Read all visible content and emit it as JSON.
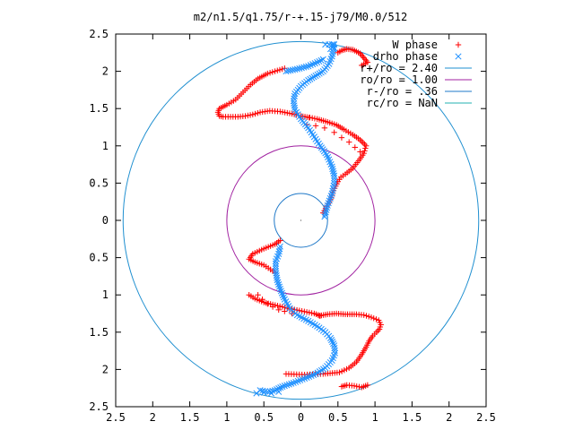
{
  "chart_data": {
    "type": "scatter",
    "title": "m2/n1.5/q1.75/r-+.15-j79/M0.0/512",
    "xlim": [
      -2.5,
      2.5
    ],
    "ylim": [
      -2.5,
      2.5
    ],
    "x_ticks": [
      -2.5,
      -2,
      -1.5,
      -1,
      -0.5,
      0,
      0.5,
      1,
      1.5,
      2,
      2.5
    ],
    "y_ticks": [
      -2.5,
      -2,
      -1.5,
      -1,
      -0.5,
      0,
      0.5,
      1,
      1.5,
      2,
      2.5
    ],
    "x_tick_labels": [
      "2.5",
      "2",
      "1.5",
      "1",
      "0.5",
      "0",
      "0.5",
      "1",
      "1.5",
      "2",
      "2.5"
    ],
    "y_tick_labels": [
      "2.5",
      "2",
      "1.5",
      "1",
      "0.5",
      "0",
      "0.5",
      "1",
      "1.5",
      "2",
      "2.5"
    ],
    "grid": false,
    "legend_position": "top-right",
    "legend": [
      {
        "label": "W phase",
        "kind": "series",
        "marker": "+",
        "color": "#ff0000"
      },
      {
        "label": "drho phase",
        "kind": "series",
        "marker": "x",
        "color": "#1e90ff"
      },
      {
        "label": "r+/ro = 2.40",
        "kind": "circle",
        "color": "#1f8fd0"
      },
      {
        "label": "ro/ro = 1.00",
        "kind": "circle",
        "color": "#a020a0"
      },
      {
        "label": "r-/ro = .36",
        "kind": "circle",
        "color": "#1e78c8"
      },
      {
        "label": "rc/ro = NaN",
        "kind": "circle",
        "color": "#20b0b0"
      }
    ],
    "circles": [
      {
        "r": 2.4,
        "color": "#1f8fd0"
      },
      {
        "r": 1.0,
        "color": "#a020a0"
      },
      {
        "r": 0.36,
        "color": "#1e78c8"
      }
    ],
    "series": [
      {
        "name": "W phase",
        "marker": "+",
        "color": "#ff0000",
        "polylines": [
          [
            [
              0.55,
              -2.23
            ],
            [
              0.62,
              -2.21
            ],
            [
              0.72,
              -2.22
            ],
            [
              0.82,
              -2.24
            ],
            [
              0.9,
              -2.21
            ]
          ],
          [
            [
              -0.2,
              -2.06
            ],
            [
              0.05,
              -2.07
            ],
            [
              0.3,
              -2.06
            ],
            [
              0.52,
              -2.04
            ],
            [
              0.65,
              -1.98
            ],
            [
              0.75,
              -1.9
            ],
            [
              0.82,
              -1.8
            ],
            [
              0.88,
              -1.7
            ],
            [
              0.92,
              -1.62
            ],
            [
              0.97,
              -1.55
            ],
            [
              1.02,
              -1.5
            ],
            [
              1.06,
              -1.46
            ],
            [
              1.08,
              -1.4
            ],
            [
              1.05,
              -1.34
            ],
            [
              0.95,
              -1.3
            ],
            [
              0.85,
              -1.27
            ],
            [
              0.75,
              -1.26
            ],
            [
              0.6,
              -1.26
            ],
            [
              0.48,
              -1.25
            ],
            [
              0.36,
              -1.26
            ],
            [
              0.25,
              -1.28
            ]
          ],
          [
            [
              0.26,
              -1.28
            ],
            [
              0.18,
              -1.25
            ],
            [
              0.08,
              -1.23
            ],
            [
              -0.02,
              -1.21
            ],
            [
              -0.12,
              -1.19
            ],
            [
              -0.25,
              -1.16
            ],
            [
              -0.38,
              -1.13
            ],
            [
              -0.5,
              -1.1
            ],
            [
              -0.62,
              -1.05
            ],
            [
              -0.7,
              -1.0
            ]
          ],
          [
            [
              -0.35,
              -0.7
            ],
            [
              -0.5,
              -0.6
            ],
            [
              -0.62,
              -0.56
            ],
            [
              -0.7,
              -0.52
            ],
            [
              -0.65,
              -0.45
            ],
            [
              -0.5,
              -0.38
            ],
            [
              -0.35,
              -0.32
            ],
            [
              -0.28,
              -0.27
            ]
          ],
          [
            [
              0.3,
              0.1
            ],
            [
              0.4,
              0.28
            ],
            [
              0.44,
              0.4
            ],
            [
              0.5,
              0.52
            ],
            [
              0.54,
              0.58
            ],
            [
              0.6,
              0.62
            ],
            [
              0.7,
              0.7
            ],
            [
              0.78,
              0.8
            ],
            [
              0.85,
              0.9
            ],
            [
              0.88,
              1.0
            ],
            [
              0.8,
              1.08
            ],
            [
              0.7,
              1.15
            ],
            [
              0.58,
              1.22
            ],
            [
              0.48,
              1.28
            ],
            [
              0.36,
              1.32
            ],
            [
              0.22,
              1.36
            ],
            [
              0.12,
              1.38
            ]
          ],
          [
            [
              0.11,
              1.38
            ],
            [
              0.0,
              1.4
            ],
            [
              -0.12,
              1.43
            ],
            [
              -0.28,
              1.46
            ],
            [
              -0.42,
              1.47
            ],
            [
              -0.55,
              1.45
            ],
            [
              -0.65,
              1.42
            ],
            [
              -0.75,
              1.4
            ],
            [
              -0.85,
              1.39
            ],
            [
              -0.95,
              1.39
            ],
            [
              -1.05,
              1.39
            ],
            [
              -1.1,
              1.4
            ],
            [
              -1.12,
              1.45
            ],
            [
              -1.1,
              1.5
            ],
            [
              -1.0,
              1.55
            ],
            [
              -0.88,
              1.62
            ],
            [
              -0.78,
              1.72
            ],
            [
              -0.68,
              1.82
            ],
            [
              -0.58,
              1.9
            ],
            [
              -0.45,
              1.97
            ],
            [
              -0.35,
              2.0
            ],
            [
              -0.22,
              2.04
            ]
          ],
          [
            [
              0.82,
              2.08
            ],
            [
              0.9,
              2.12
            ],
            [
              0.85,
              2.18
            ],
            [
              0.8,
              2.24
            ],
            [
              0.7,
              2.29
            ],
            [
              0.62,
              2.3
            ],
            [
              0.55,
              2.28
            ],
            [
              0.5,
              2.25
            ]
          ]
        ],
        "points": [
          [
            -0.58,
            -1.0
          ],
          [
            -0.52,
            -1.06
          ],
          [
            -0.45,
            -1.12
          ],
          [
            -0.38,
            -1.16
          ],
          [
            -0.3,
            -1.2
          ],
          [
            -0.22,
            -1.22
          ],
          [
            -0.12,
            -1.25
          ],
          [
            0.08,
            1.28
          ],
          [
            0.2,
            1.27
          ],
          [
            0.32,
            1.24
          ],
          [
            0.45,
            1.18
          ],
          [
            0.55,
            1.11
          ],
          [
            0.65,
            1.05
          ],
          [
            0.73,
            0.98
          ],
          [
            0.8,
            0.92
          ]
        ]
      },
      {
        "name": "drho phase",
        "marker": "x",
        "color": "#1e90ff",
        "polylines": [
          [
            [
              -0.55,
              -2.28
            ],
            [
              -0.45,
              -2.3
            ],
            [
              -0.35,
              -2.28
            ],
            [
              -0.25,
              -2.23
            ],
            [
              -0.1,
              -2.18
            ],
            [
              0.05,
              -2.12
            ],
            [
              0.2,
              -2.06
            ],
            [
              0.33,
              -1.98
            ],
            [
              0.42,
              -1.88
            ],
            [
              0.46,
              -1.78
            ],
            [
              0.45,
              -1.68
            ],
            [
              0.4,
              -1.58
            ],
            [
              0.33,
              -1.5
            ],
            [
              0.22,
              -1.42
            ],
            [
              0.1,
              -1.35
            ],
            [
              -0.05,
              -1.27
            ],
            [
              -0.15,
              -1.18
            ],
            [
              -0.22,
              -1.06
            ],
            [
              -0.28,
              -0.92
            ],
            [
              -0.32,
              -0.8
            ],
            [
              -0.34,
              -0.68
            ],
            [
              -0.34,
              -0.55
            ],
            [
              -0.3,
              -0.45
            ],
            [
              -0.28,
              -0.35
            ]
          ],
          [
            [
              0.32,
              0.05
            ],
            [
              0.36,
              0.2
            ],
            [
              0.42,
              0.36
            ],
            [
              0.45,
              0.5
            ],
            [
              0.45,
              0.6
            ],
            [
              0.42,
              0.72
            ],
            [
              0.35,
              0.88
            ],
            [
              0.26,
              1.0
            ],
            [
              0.18,
              1.12
            ],
            [
              0.1,
              1.24
            ],
            [
              0.0,
              1.36
            ],
            [
              -0.08,
              1.48
            ],
            [
              -0.1,
              1.6
            ],
            [
              -0.08,
              1.7
            ],
            [
              0.0,
              1.8
            ],
            [
              0.1,
              1.88
            ],
            [
              0.2,
              1.94
            ],
            [
              0.3,
              2.0
            ],
            [
              0.38,
              2.1
            ],
            [
              0.42,
              2.2
            ],
            [
              0.44,
              2.3
            ],
            [
              0.44,
              2.36
            ]
          ],
          [
            [
              -0.2,
              2.0
            ],
            [
              -0.05,
              2.03
            ],
            [
              0.1,
              2.07
            ],
            [
              0.22,
              2.12
            ],
            [
              0.3,
              2.16
            ]
          ]
        ],
        "points": [
          [
            0.33,
            2.36
          ],
          [
            0.38,
            2.36
          ],
          [
            0.42,
            2.36
          ],
          [
            0.45,
            2.36
          ],
          [
            0.4,
            2.3
          ],
          [
            0.45,
            2.31
          ],
          [
            -0.5,
            -2.31
          ],
          [
            -0.4,
            -2.32
          ],
          [
            -0.3,
            -2.3
          ],
          [
            -0.6,
            -2.32
          ]
        ]
      }
    ]
  }
}
